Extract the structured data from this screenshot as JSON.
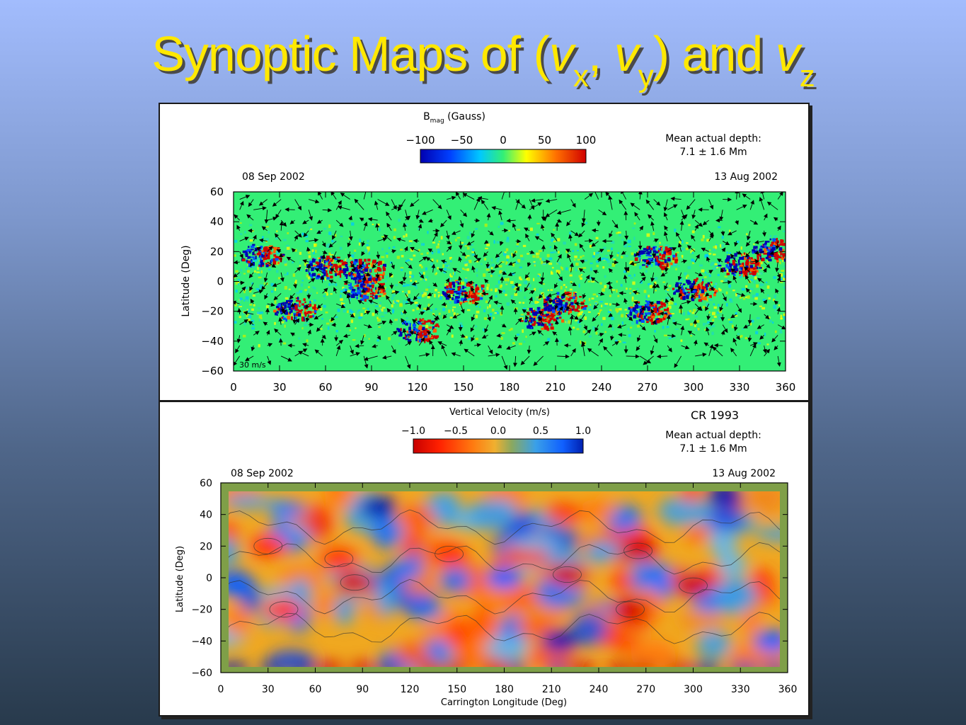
{
  "slide": {
    "title_main": "Synoptic Maps of (",
    "title_vx": "v",
    "title_vx_sub": "x",
    "title_sep": ", ",
    "title_vy": "v",
    "title_vy_sub": "y",
    "title_mid": ") and ",
    "title_vz": "v",
    "title_vz_sub": "z"
  },
  "colors": {
    "title": "#ffe800",
    "field_green": "#33ef76",
    "bmag_colorbar": [
      "#0000b0",
      "#0040ff",
      "#00c8ff",
      "#33ef76",
      "#ffff00",
      "#ff7000",
      "#d00000"
    ],
    "vz_colorbar": [
      "#c80000",
      "#ff2000",
      "#ff7a10",
      "#f0b030",
      "#8aa860",
      "#3aa0e8",
      "#1060ff",
      "#0020b0"
    ]
  },
  "chart_data": [
    {
      "type": "heatmap",
      "title": "B_mag (Gauss)",
      "title_main": "B",
      "title_sub": "mag",
      "title_rest": " (Gauss)",
      "colorbar": {
        "ticks": [
          "−100",
          "−50",
          "0",
          "50",
          "100"
        ],
        "range": [
          -100,
          100
        ]
      },
      "annotation": [
        "Mean actual depth:",
        "7.1  ±  1.6 Mm"
      ],
      "date_left": "08 Sep 2002",
      "date_right": "13 Aug 2002",
      "xlabel": "",
      "ylabel": "Latitude (Deg)",
      "xlim": [
        0,
        360
      ],
      "ylim": [
        -60,
        60
      ],
      "x_ticks": [
        0,
        30,
        60,
        90,
        120,
        150,
        180,
        210,
        240,
        270,
        300,
        330,
        360
      ],
      "y_ticks": [
        60,
        40,
        20,
        0,
        -20,
        -40,
        -60
      ],
      "vector_legend": "30 m/s",
      "active_regions": [
        {
          "lon": 18,
          "lat": 18,
          "polarity": "mixed"
        },
        {
          "lon": 60,
          "lat": 10,
          "polarity": "mixed"
        },
        {
          "lon": 85,
          "lat": 8,
          "polarity": "mixed"
        },
        {
          "lon": 40,
          "lat": -18,
          "polarity": "mixed"
        },
        {
          "lon": 85,
          "lat": -4,
          "polarity": "mixed"
        },
        {
          "lon": 150,
          "lat": -6,
          "polarity": "mixed"
        },
        {
          "lon": 120,
          "lat": -32,
          "polarity": "mixed"
        },
        {
          "lon": 200,
          "lat": -24,
          "polarity": "mixed"
        },
        {
          "lon": 215,
          "lat": -14,
          "polarity": "mixed"
        },
        {
          "lon": 270,
          "lat": -20,
          "polarity": "mixed"
        },
        {
          "lon": 300,
          "lat": -5,
          "polarity": "mixed"
        },
        {
          "lon": 330,
          "lat": 12,
          "polarity": "mixed"
        },
        {
          "lon": 275,
          "lat": 17,
          "polarity": "mixed"
        },
        {
          "lon": 352,
          "lat": 22,
          "polarity": "mixed"
        }
      ]
    },
    {
      "type": "heatmap",
      "title": "Vertical Velocity (m/s)",
      "annotation_cr": "CR 1993",
      "annotation": [
        "Mean actual depth:",
        "7.1  ±  1.6 Mm"
      ],
      "colorbar": {
        "ticks": [
          "−1.0",
          "−0.5",
          "0.0",
          "0.5",
          "1.0"
        ],
        "range": [
          -1.0,
          1.0
        ]
      },
      "date_left": "08 Sep 2002",
      "date_right": "13 Aug 2002",
      "xlabel": "Carrington Longitude (Deg)",
      "ylabel": "Latitude (Deg)",
      "xlim": [
        0,
        360
      ],
      "ylim": [
        -60,
        60
      ],
      "x_ticks": [
        0,
        30,
        60,
        90,
        120,
        150,
        180,
        210,
        240,
        270,
        300,
        330,
        360
      ],
      "y_ticks": [
        60,
        40,
        20,
        0,
        -20,
        -40,
        -60
      ],
      "features": [
        {
          "lon": 220,
          "lat": 2,
          "vz": -0.9
        },
        {
          "lon": 260,
          "lat": -20,
          "vz": -1.0
        },
        {
          "lon": 300,
          "lat": -5,
          "vz": -1.0
        },
        {
          "lon": 265,
          "lat": 17,
          "vz": -0.9
        },
        {
          "lon": 85,
          "lat": -3,
          "vz": -0.9
        },
        {
          "lon": 75,
          "lat": 12,
          "vz": -0.7
        },
        {
          "lon": 30,
          "lat": 20,
          "vz": -0.6
        },
        {
          "lon": 40,
          "lat": -20,
          "vz": -0.6
        },
        {
          "lon": 145,
          "lat": 15,
          "vz": -0.5
        },
        {
          "lon": 100,
          "lat": 45,
          "vz": 0.9
        },
        {
          "lon": 215,
          "lat": -40,
          "vz": 1.0
        },
        {
          "lon": 320,
          "lat": 52,
          "vz": 1.0
        },
        {
          "lon": 350,
          "lat": -40,
          "vz": 0.8
        },
        {
          "lon": 180,
          "lat": 0,
          "vz": 0.6
        },
        {
          "lon": 10,
          "lat": -5,
          "vz": 0.6
        }
      ]
    }
  ]
}
